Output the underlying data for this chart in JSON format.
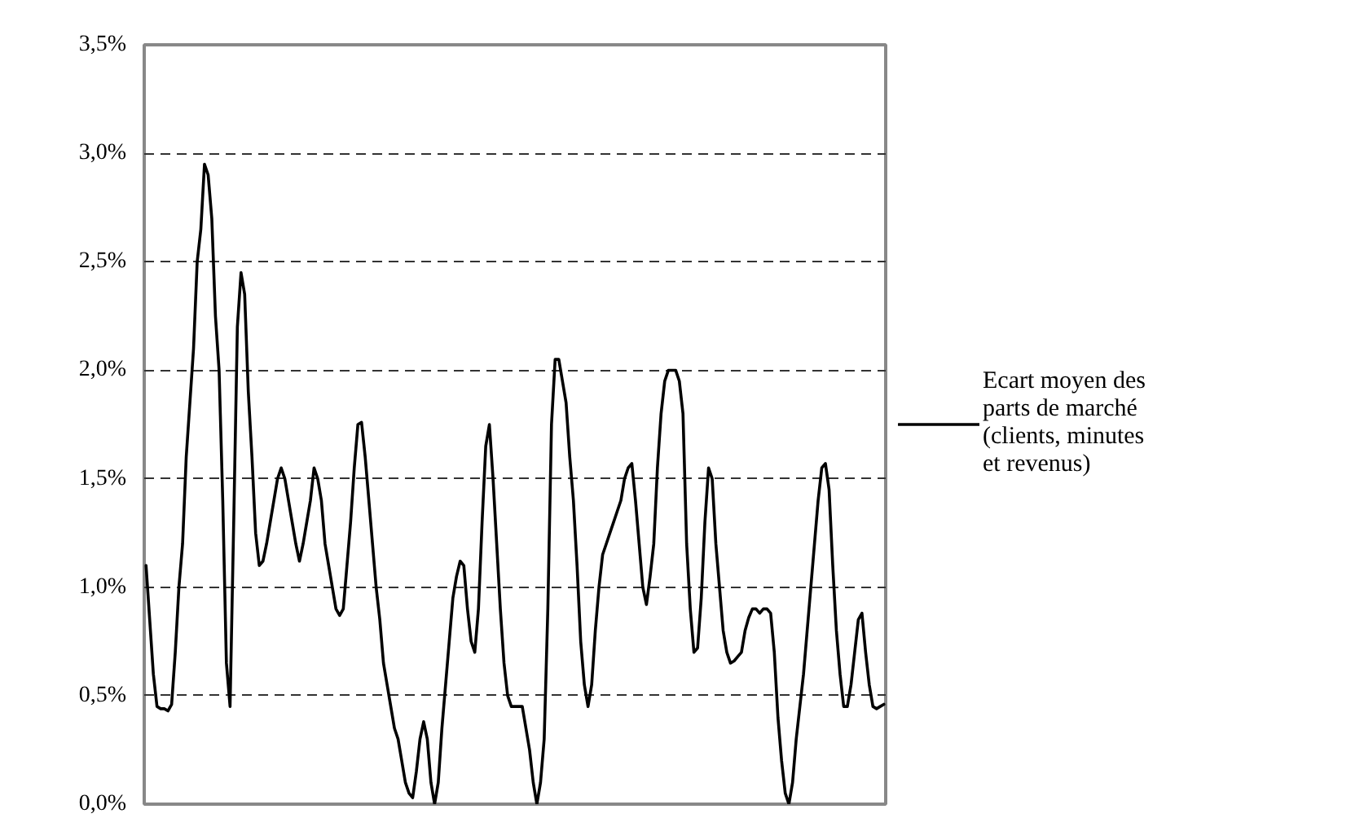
{
  "chart_data": {
    "type": "line",
    "categories": [
      null,
      null,
      null,
      null,
      null,
      null,
      null,
      null,
      null,
      null,
      null,
      null,
      null,
      null,
      null,
      null,
      null,
      null,
      null,
      null,
      null,
      null,
      null,
      null,
      null,
      null,
      null,
      null,
      null,
      null,
      null,
      null,
      null,
      null,
      null,
      null,
      null,
      null,
      null,
      null,
      null,
      null,
      null,
      null,
      null,
      null,
      null,
      null,
      null,
      null,
      null,
      null,
      null,
      null,
      null,
      null,
      null,
      null,
      null,
      null,
      null,
      null,
      null,
      null,
      null,
      null,
      null,
      null,
      null,
      null,
      null,
      null,
      null,
      null,
      null,
      null,
      null,
      null,
      null,
      null,
      null,
      null,
      null,
      null,
      null,
      null,
      null,
      null,
      null,
      null,
      null,
      null,
      null,
      null,
      null,
      null,
      null,
      null,
      null,
      null,
      null,
      null,
      null,
      null,
      null,
      null,
      null,
      null,
      null,
      null,
      null,
      null,
      null,
      null,
      null,
      null,
      null,
      null,
      null,
      null,
      null,
      null,
      null,
      null,
      null,
      null,
      null,
      null,
      null,
      null,
      null,
      null,
      null,
      null,
      null,
      null,
      null,
      null,
      null,
      null,
      null,
      null,
      null,
      null,
      null,
      null,
      null,
      null,
      null,
      null,
      null,
      null,
      null,
      null,
      null,
      null,
      null,
      null,
      null,
      null,
      null,
      null,
      null,
      null,
      null,
      null,
      null,
      null,
      null,
      null,
      null,
      null,
      null,
      null,
      null,
      null,
      null,
      null,
      null,
      null,
      null,
      null,
      null,
      null,
      null,
      null,
      null,
      null,
      null,
      null,
      null,
      null,
      null,
      null,
      null,
      null,
      null,
      null,
      null,
      null,
      null,
      null,
      null
    ],
    "series": [
      {
        "name": "Ecart moyen des parts de marché (clients, minutes et revenus)",
        "color": "#000000",
        "values": [
          1.1,
          0.85,
          0.6,
          0.45,
          0.44,
          0.44,
          0.43,
          0.46,
          0.7,
          1.0,
          1.2,
          1.6,
          1.85,
          2.1,
          2.5,
          2.65,
          2.95,
          2.9,
          2.7,
          2.25,
          2.0,
          1.4,
          0.65,
          0.45,
          1.3,
          2.2,
          2.45,
          2.35,
          1.9,
          1.6,
          1.25,
          1.1,
          1.12,
          1.2,
          1.3,
          1.4,
          1.5,
          1.55,
          1.5,
          1.4,
          1.3,
          1.2,
          1.12,
          1.2,
          1.3,
          1.4,
          1.55,
          1.5,
          1.4,
          1.2,
          1.1,
          1.0,
          0.9,
          0.87,
          0.9,
          1.1,
          1.3,
          1.55,
          1.75,
          1.76,
          1.6,
          1.4,
          1.2,
          1.0,
          0.85,
          0.65,
          0.55,
          0.45,
          0.35,
          0.3,
          0.2,
          0.1,
          0.05,
          0.03,
          0.15,
          0.3,
          0.38,
          0.3,
          0.1,
          0.0,
          0.1,
          0.35,
          0.55,
          0.75,
          0.95,
          1.05,
          1.12,
          1.1,
          0.9,
          0.75,
          0.7,
          0.9,
          1.3,
          1.65,
          1.75,
          1.5,
          1.2,
          0.9,
          0.65,
          0.5,
          0.45,
          0.45,
          0.45,
          0.45,
          0.35,
          0.25,
          0.1,
          0.0,
          0.1,
          0.3,
          0.9,
          1.75,
          2.05,
          2.05,
          1.95,
          1.85,
          1.6,
          1.4,
          1.1,
          0.75,
          0.55,
          0.45,
          0.55,
          0.8,
          1.0,
          1.15,
          1.2,
          1.25,
          1.3,
          1.35,
          1.4,
          1.5,
          1.55,
          1.57,
          1.4,
          1.2,
          1.0,
          0.92,
          1.05,
          1.2,
          1.55,
          1.8,
          1.95,
          2.0,
          2.0,
          2.0,
          1.95,
          1.8,
          1.2,
          0.9,
          0.7,
          0.72,
          0.95,
          1.3,
          1.55,
          1.5,
          1.2,
          1.0,
          0.8,
          0.7,
          0.65,
          0.66,
          0.68,
          0.7,
          0.8,
          0.86,
          0.9,
          0.9,
          0.88,
          0.9,
          0.9,
          0.88,
          0.7,
          0.4,
          0.2,
          0.05,
          0.0,
          0.1,
          0.3,
          0.45,
          0.6,
          0.8,
          1.0,
          1.2,
          1.4,
          1.55,
          1.57,
          1.45,
          1.1,
          0.8,
          0.6,
          0.45,
          0.45,
          0.55,
          0.7,
          0.85,
          0.88,
          0.7,
          0.55,
          0.45,
          0.44,
          0.45,
          0.46
        ]
      }
    ],
    "ylim": [
      0,
      3.5
    ],
    "yticks": [
      {
        "value": 0,
        "label": "0,0%"
      },
      {
        "value": 0.5,
        "label": "0,5%"
      },
      {
        "value": 1.0,
        "label": "1,0%"
      },
      {
        "value": 1.5,
        "label": "1,5%"
      },
      {
        "value": 2.0,
        "label": "2,0%"
      },
      {
        "value": 2.5,
        "label": "2,5%"
      },
      {
        "value": 3.0,
        "label": "3,0%"
      },
      {
        "value": 3.5,
        "label": "3,5%"
      }
    ],
    "grid": "y",
    "legend": "right",
    "line_style": "solid",
    "marker": "none"
  }
}
